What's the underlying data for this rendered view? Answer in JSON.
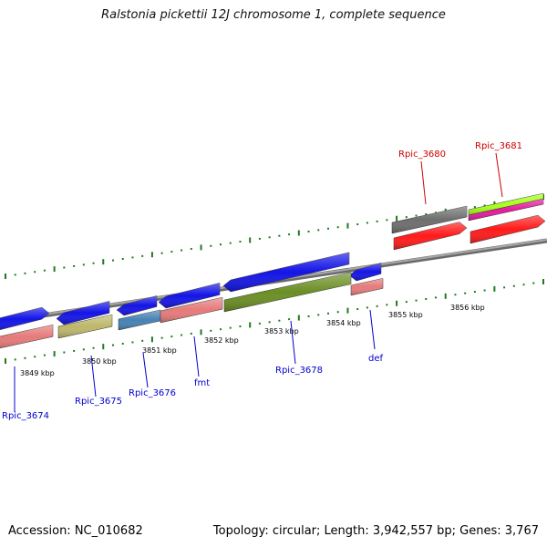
{
  "title": "Ralstonia pickettii 12J chromosome 1, complete sequence",
  "footer": {
    "accession": "Accession: NC_010682",
    "topology": "Topology: circular; Length: 3,942,557 bp; Genes: 3,767"
  },
  "ticks": [
    {
      "label": "3849 kbp"
    },
    {
      "label": "3850 kbp"
    },
    {
      "label": "3851 kbp"
    },
    {
      "label": "3852 kbp"
    },
    {
      "label": "3853 kbp"
    },
    {
      "label": "3854 kbp"
    },
    {
      "label": "3855 kbp"
    },
    {
      "label": "3856 kbp"
    }
  ],
  "gene_labels": [
    {
      "text": "Rpic_3674",
      "color": "#0000cc"
    },
    {
      "text": "Rpic_3675",
      "color": "#0000cc"
    },
    {
      "text": "Rpic_3676",
      "color": "#0000cc"
    },
    {
      "text": "fmt",
      "color": "#0000cc"
    },
    {
      "text": "Rpic_3678",
      "color": "#0000cc"
    },
    {
      "text": "def",
      "color": "#0000cc"
    },
    {
      "text": "Rpic_3680",
      "color": "#cc0000"
    },
    {
      "text": "Rpic_3681",
      "color": "#cc0000"
    }
  ],
  "colors": {
    "backbone": "#8a8a8a",
    "tick": "#1f7a1f",
    "cds_blue": "#1414e6",
    "pink": "#e67a7a",
    "khaki": "#bdb76b",
    "steelblue": "#4682b4",
    "olive": "#6b8e23",
    "gray_feature": "#6e6e6e",
    "red": "#ff1a1a",
    "lime": "#a6ff1a",
    "magenta": "#e6199e"
  }
}
